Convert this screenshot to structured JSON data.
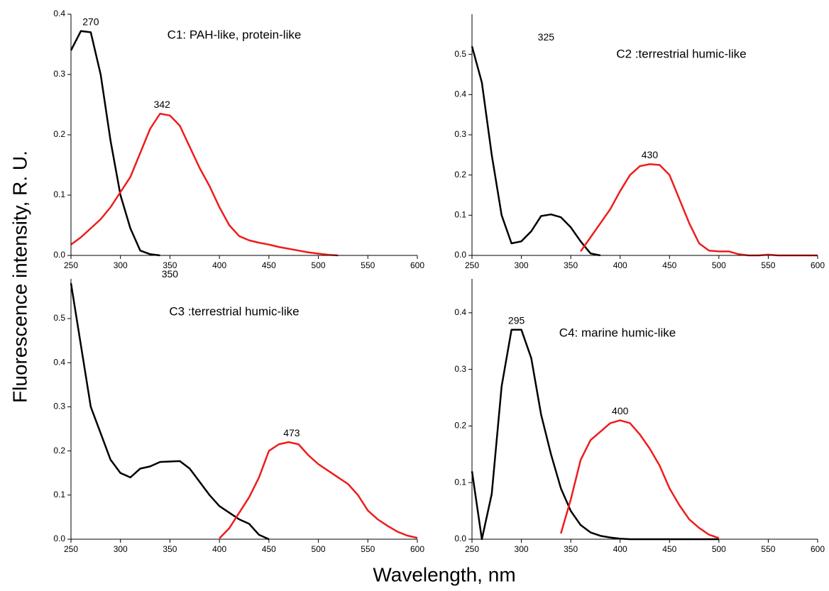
{
  "ylabel": "Fluorescence intensity, R. U.",
  "xlabel": "Wavelength, nm",
  "chart_data": [
    {
      "type": "line",
      "title": "C1: PAH-like, protein-like",
      "x": [
        250,
        260,
        270,
        280,
        290,
        300,
        310,
        320,
        330,
        340,
        350,
        360,
        370,
        380,
        390,
        400,
        410,
        420,
        430,
        440,
        450,
        460,
        470,
        480,
        490,
        500,
        510,
        520,
        530,
        540,
        550,
        560,
        570,
        580,
        590,
        600
      ],
      "xlim": [
        250,
        600
      ],
      "xticks": [
        250,
        300,
        350,
        400,
        450,
        500,
        550,
        600
      ],
      "ylim": [
        0,
        0.4
      ],
      "yticks": [
        {
          "value": 0,
          "label": "0.0"
        },
        0.1,
        0.2,
        0.3,
        0.4
      ],
      "series": [
        {
          "color": "#000000",
          "peak": 270,
          "values": [
            0.34,
            0.372,
            0.37,
            0.3,
            0.19,
            0.1,
            0.045,
            0.008,
            0.002,
            0,
            null,
            null,
            null,
            null,
            null,
            null,
            null,
            null,
            null,
            null,
            null,
            null,
            null,
            null,
            null,
            null,
            null,
            null,
            null,
            null,
            null,
            null,
            null,
            null,
            null,
            null
          ]
        },
        {
          "color": "#ee1c1c",
          "peak": 342,
          "values": [
            0.018,
            0.03,
            0.045,
            0.06,
            0.08,
            0.105,
            0.13,
            0.17,
            0.21,
            0.235,
            0.232,
            0.215,
            0.18,
            0.145,
            0.115,
            0.08,
            0.05,
            0.032,
            0.025,
            0.021,
            0.018,
            0.014,
            0.011,
            0.008,
            0.005,
            0.003,
            0.001,
            0,
            null,
            null,
            null,
            null,
            null,
            null,
            null,
            null
          ]
        }
      ]
    },
    {
      "type": "line",
      "title": "C2 :terrestrial humic-like",
      "x": [
        250,
        260,
        270,
        280,
        290,
        300,
        310,
        320,
        330,
        340,
        350,
        360,
        370,
        380,
        390,
        400,
        410,
        420,
        430,
        440,
        450,
        460,
        470,
        480,
        490,
        500,
        510,
        520,
        530,
        540,
        550,
        560,
        570,
        580,
        590,
        600
      ],
      "xlim": [
        250,
        600
      ],
      "xticks": [
        250,
        300,
        350,
        400,
        450,
        500,
        550,
        600
      ],
      "ylim": [
        0,
        0.6
      ],
      "yticks": [
        {
          "value": 0,
          "label": "0.0"
        },
        0.1,
        0.2,
        0.3,
        0.4,
        0.5
      ],
      "series": [
        {
          "color": "#000000",
          "peak": 325,
          "values": [
            0.52,
            0.43,
            0.25,
            0.1,
            0.03,
            0.035,
            0.06,
            0.098,
            0.102,
            0.095,
            0.07,
            0.035,
            0.005,
            0,
            null,
            null,
            null,
            null,
            null,
            null,
            null,
            null,
            null,
            null,
            null,
            null,
            null,
            null,
            null,
            null,
            null,
            null,
            null,
            null,
            null,
            null
          ]
        },
        {
          "color": "#ee1c1c",
          "peak": 430,
          "values": [
            null,
            null,
            null,
            null,
            null,
            null,
            null,
            null,
            null,
            null,
            null,
            0.01,
            0.045,
            0.08,
            0.115,
            0.16,
            0.2,
            0.222,
            0.227,
            0.225,
            0.2,
            0.14,
            0.08,
            0.03,
            0.012,
            0.01,
            0.01,
            0.003,
            0,
            0,
            0.002,
            0,
            0,
            0,
            0,
            0
          ]
        }
      ]
    },
    {
      "type": "line",
      "title": "C3 :terrestrial humic-like",
      "x": [
        250,
        260,
        270,
        280,
        290,
        300,
        310,
        320,
        330,
        340,
        350,
        360,
        370,
        380,
        390,
        400,
        410,
        420,
        430,
        440,
        450,
        460,
        470,
        480,
        490,
        500,
        510,
        520,
        530,
        540,
        550,
        560,
        570,
        580,
        590,
        600
      ],
      "xlim": [
        250,
        600
      ],
      "xticks": [
        250,
        300,
        350,
        400,
        450,
        500,
        550,
        600
      ],
      "ylim": [
        0,
        0.59
      ],
      "yticks": [
        {
          "value": 0,
          "label": "0.0"
        },
        0.1,
        0.2,
        0.3,
        0.4,
        0.5
      ],
      "series": [
        {
          "color": "#000000",
          "peak": 350,
          "values": [
            0.58,
            0.44,
            0.3,
            0.24,
            0.18,
            0.15,
            0.14,
            0.16,
            0.165,
            0.175,
            0.176,
            0.177,
            0.16,
            0.13,
            0.1,
            0.075,
            0.06,
            0.045,
            0.035,
            0.01,
            0,
            null,
            null,
            null,
            null,
            null,
            null,
            null,
            null,
            null,
            null,
            null,
            null,
            null,
            null,
            null
          ]
        },
        {
          "color": "#ee1c1c",
          "peak": 473,
          "values": [
            null,
            null,
            null,
            null,
            null,
            null,
            null,
            null,
            null,
            null,
            null,
            null,
            null,
            null,
            null,
            0.002,
            0.025,
            0.06,
            0.095,
            0.14,
            0.2,
            0.215,
            0.22,
            0.215,
            0.19,
            0.17,
            0.155,
            0.14,
            0.125,
            0.1,
            0.065,
            0.045,
            0.03,
            0.017,
            0.008,
            0.003
          ]
        }
      ]
    },
    {
      "type": "line",
      "title": "C4: marine humic-like",
      "x": [
        250,
        260,
        270,
        280,
        290,
        300,
        310,
        320,
        330,
        340,
        350,
        360,
        370,
        380,
        390,
        400,
        410,
        420,
        430,
        440,
        450,
        460,
        470,
        480,
        490,
        500,
        510,
        520,
        530,
        540,
        550,
        560,
        570,
        580,
        590,
        600
      ],
      "xlim": [
        250,
        600
      ],
      "xticks": [
        250,
        300,
        350,
        400,
        450,
        500,
        550,
        600
      ],
      "ylim": [
        0,
        0.46
      ],
      "yticks": [
        {
          "value": 0,
          "label": "0.0"
        },
        0.1,
        0.2,
        0.3,
        0.4
      ],
      "series": [
        {
          "color": "#000000",
          "peak": 295,
          "values": [
            0.12,
            0,
            0.08,
            0.27,
            0.37,
            0.37,
            0.32,
            0.22,
            0.15,
            0.09,
            0.05,
            0.025,
            0.012,
            0.006,
            0.003,
            0.001,
            0,
            0,
            0,
            0,
            0,
            0,
            0,
            0,
            0,
            0,
            null,
            null,
            null,
            null,
            null,
            null,
            null,
            null,
            null,
            null
          ]
        },
        {
          "color": "#ee1c1c",
          "peak": 400,
          "values": [
            null,
            null,
            null,
            null,
            null,
            null,
            null,
            null,
            null,
            0.01,
            0.07,
            0.14,
            0.175,
            0.19,
            0.205,
            0.21,
            0.205,
            0.185,
            0.16,
            0.13,
            0.09,
            0.06,
            0.035,
            0.02,
            0.008,
            0.002,
            null,
            null,
            null,
            null,
            null,
            null,
            null,
            null,
            null,
            null
          ]
        }
      ]
    }
  ]
}
